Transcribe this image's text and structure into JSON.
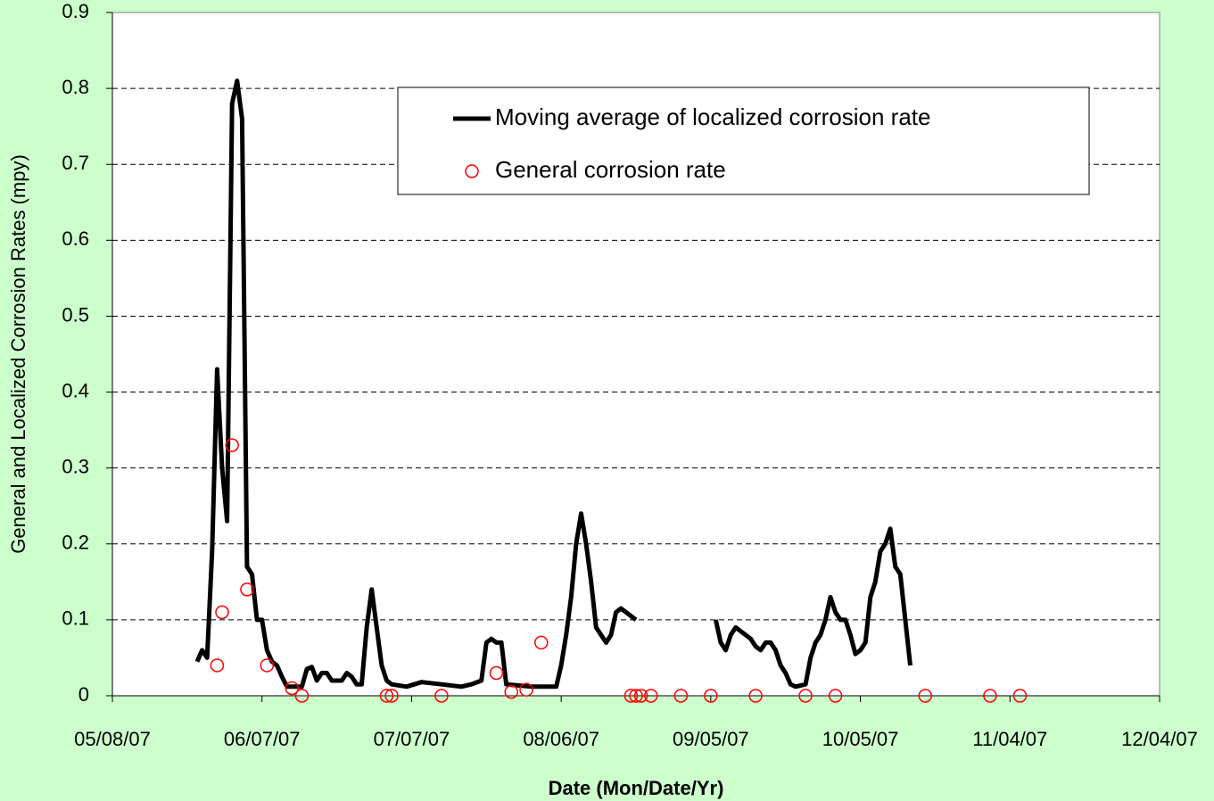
{
  "chart_data": {
    "type": "line",
    "x_label": "Date (Mon/Date/Yr)",
    "y_label": "General and Localized Corrosion Rates (mpy)",
    "xlim": [
      "2007-05-08",
      "2007-12-04"
    ],
    "xticks": [
      {
        "value": "2007-05-08",
        "label": "05/08/07"
      },
      {
        "value": "2007-06-07",
        "label": "06/07/07"
      },
      {
        "value": "2007-07-07",
        "label": "07/07/07"
      },
      {
        "value": "2007-08-06",
        "label": "08/06/07"
      },
      {
        "value": "2007-09-05",
        "label": "09/05/07"
      },
      {
        "value": "2007-10-05",
        "label": "10/05/07"
      },
      {
        "value": "2007-11-04",
        "label": "11/04/07"
      },
      {
        "value": "2007-12-04",
        "label": "12/04/07"
      }
    ],
    "ylim": [
      0,
      0.9
    ],
    "yticks": [
      0,
      0.1,
      0.2,
      0.3,
      0.4,
      0.5,
      0.6,
      0.7,
      0.8,
      0.9
    ],
    "grid": true,
    "legend": "top",
    "series": [
      {
        "name": "Moving average of localized corrosion rate",
        "color": "#000000",
        "mode": "line",
        "x": [
          "2007-05-25",
          "2007-05-26",
          "2007-05-27",
          "2007-05-28",
          "2007-05-29",
          "2007-05-30",
          "2007-05-31",
          "2007-06-01",
          "2007-06-02",
          "2007-06-03",
          "2007-06-04",
          "2007-06-05",
          "2007-06-06",
          "2007-06-07",
          "2007-06-08",
          "2007-06-09",
          "2007-06-10",
          "2007-06-11",
          "2007-06-12",
          "2007-06-14",
          "2007-06-15",
          "2007-06-16",
          "2007-06-17",
          "2007-06-18",
          "2007-06-19",
          "2007-06-20",
          "2007-06-21",
          "2007-06-23",
          "2007-06-24",
          "2007-06-25",
          "2007-06-26",
          "2007-06-27",
          "2007-06-28",
          "2007-06-29",
          "2007-06-30",
          "2007-07-01",
          "2007-07-02",
          "2007-07-03",
          "2007-07-06",
          "2007-07-09",
          "2007-07-13",
          "2007-07-17",
          "2007-07-19",
          "2007-07-21",
          "2007-07-22",
          "2007-07-23",
          "2007-07-24",
          "2007-07-25",
          "2007-07-26",
          "2007-07-31",
          "2007-08-05",
          "2007-08-06",
          "2007-08-07",
          "2007-08-08",
          "2007-08-09",
          "2007-08-10",
          "2007-08-11",
          "2007-08-12",
          "2007-08-13",
          "2007-08-14",
          "2007-08-15",
          "2007-08-16",
          "2007-08-17",
          "2007-08-18",
          "2007-08-19",
          "2007-08-21",
          "2007-08-28",
          "2007-09-06",
          "2007-09-07",
          "2007-09-08",
          "2007-09-09",
          "2007-09-10",
          "2007-09-11",
          "2007-09-12",
          "2007-09-13",
          "2007-09-14",
          "2007-09-15",
          "2007-09-16",
          "2007-09-17",
          "2007-09-18",
          "2007-09-19",
          "2007-09-20",
          "2007-09-21",
          "2007-09-22",
          "2007-09-24",
          "2007-09-25",
          "2007-09-26",
          "2007-09-27",
          "2007-09-28",
          "2007-09-29",
          "2007-09-30",
          "2007-10-01",
          "2007-10-02",
          "2007-10-03",
          "2007-10-04",
          "2007-10-05",
          "2007-10-06",
          "2007-10-07",
          "2007-10-08",
          "2007-10-09",
          "2007-10-10",
          "2007-10-11",
          "2007-10-12",
          "2007-10-13",
          "2007-10-14",
          "2007-10-15"
        ],
        "values": [
          0.045,
          0.06,
          0.05,
          0.19,
          0.43,
          0.3,
          0.23,
          0.78,
          0.81,
          0.76,
          0.17,
          0.16,
          0.1,
          0.1,
          0.06,
          0.045,
          0.04,
          0.025,
          0.012,
          0.012,
          0.012,
          0.035,
          0.038,
          0.02,
          0.03,
          0.03,
          0.02,
          0.02,
          0.03,
          0.025,
          0.015,
          0.015,
          0.09,
          0.14,
          0.09,
          0.04,
          0.02,
          0.015,
          0.012,
          0.018,
          0.015,
          0.012,
          0.015,
          0.02,
          0.07,
          0.075,
          0.07,
          0.07,
          0.015,
          0.012,
          0.012,
          0.04,
          0.08,
          0.13,
          0.2,
          0.24,
          0.2,
          0.15,
          0.09,
          0.08,
          0.07,
          0.08,
          0.11,
          0.115,
          0.11,
          0.1,
          null,
          0.1,
          0.07,
          0.06,
          0.08,
          0.09,
          0.085,
          0.08,
          0.075,
          0.065,
          0.06,
          0.07,
          0.07,
          0.06,
          0.04,
          0.03,
          0.015,
          0.012,
          0.015,
          0.05,
          0.07,
          0.08,
          0.1,
          0.13,
          0.11,
          0.1,
          0.1,
          0.08,
          0.055,
          0.06,
          0.07,
          0.13,
          0.15,
          0.19,
          0.2,
          0.22,
          0.17,
          0.16,
          0.1,
          0.04
        ]
      },
      {
        "name": "General corrosion rate",
        "color": "#ff0000",
        "mode": "markers",
        "x": [
          "2007-05-29",
          "2007-05-30",
          "2007-06-01",
          "2007-06-04",
          "2007-06-08",
          "2007-06-13",
          "2007-06-15",
          "2007-07-02",
          "2007-07-03",
          "2007-07-13",
          "2007-07-24",
          "2007-07-27",
          "2007-07-30",
          "2007-08-02",
          "2007-08-20",
          "2007-08-21",
          "2007-08-22",
          "2007-08-24",
          "2007-08-30",
          "2007-09-05",
          "2007-09-14",
          "2007-09-24",
          "2007-09-30",
          "2007-10-18",
          "2007-10-31",
          "2007-11-06"
        ],
        "values": [
          0.04,
          0.11,
          0.33,
          0.14,
          0.04,
          0.01,
          0,
          0,
          0,
          0,
          0.03,
          0.005,
          0.008,
          0.07,
          0,
          0,
          0,
          0,
          0,
          0,
          0,
          0,
          0,
          0,
          0,
          0
        ]
      }
    ]
  }
}
